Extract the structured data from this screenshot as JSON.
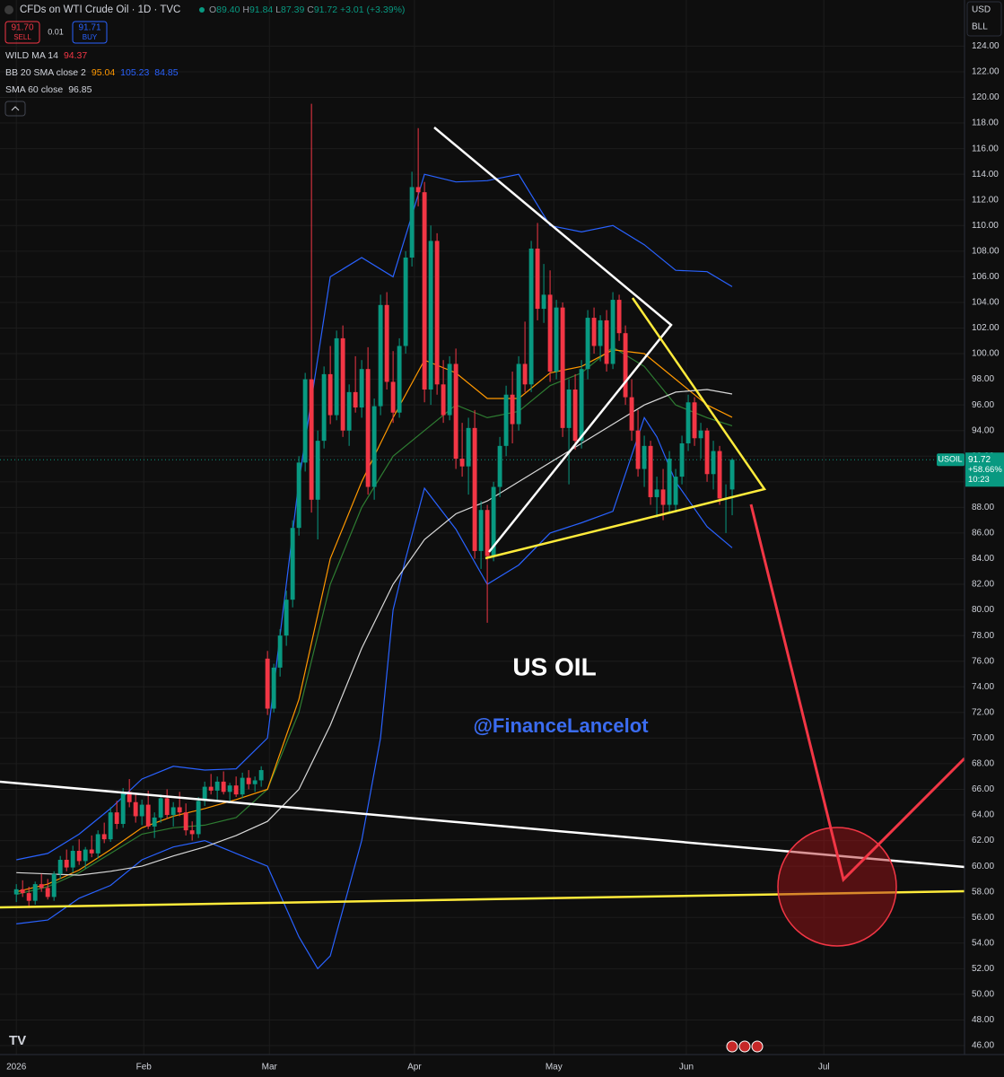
{
  "toolbar": {
    "symbol_title": "CFDs on WTI Crude Oil · 1D · TVC",
    "ohlc": [
      {
        "key": "O",
        "value": "89.40"
      },
      {
        "key": "H",
        "value": "91.84"
      },
      {
        "key": "L",
        "value": "87.39"
      },
      {
        "key": "C",
        "value": "91.72"
      }
    ],
    "change": "+3.01 (+3.39%)",
    "sell_price": "91.70",
    "sell_label": "SELL",
    "spread": "0.01",
    "buy_price": "91.71",
    "buy_label": "BUY",
    "currency": "USD",
    "unit": "BLL"
  },
  "chart_data": {
    "type": "candlestick",
    "up_color": "#089981",
    "down_color": "#f23645",
    "ylim": [
      45.3,
      127.6
    ],
    "yticks": [
      {
        "value": 46,
        "label": "46.00"
      },
      {
        "value": 48,
        "label": "48.00"
      },
      {
        "value": 50,
        "label": "50.00"
      },
      {
        "value": 52,
        "label": "52.00"
      },
      {
        "value": 54,
        "label": "54.00"
      },
      {
        "value": 56,
        "label": "56.00"
      },
      {
        "value": 58,
        "label": "58.00"
      },
      {
        "value": 60,
        "label": "60.00"
      },
      {
        "value": 62,
        "label": "62.00"
      },
      {
        "value": 64,
        "label": "64.00"
      },
      {
        "value": 66,
        "label": "66.00"
      },
      {
        "value": 68,
        "label": "68.00"
      },
      {
        "value": 70,
        "label": "70.00"
      },
      {
        "value": 72,
        "label": "72.00"
      },
      {
        "value": 74,
        "label": "74.00"
      },
      {
        "value": 76,
        "label": "76.00"
      },
      {
        "value": 78,
        "label": "78.00"
      },
      {
        "value": 80,
        "label": "80.00"
      },
      {
        "value": 82,
        "label": "82.00"
      },
      {
        "value": 84,
        "label": "84.00"
      },
      {
        "value": 86,
        "label": "86.00"
      },
      {
        "value": 88,
        "label": "88.00"
      },
      {
        "value": 90,
        "label": "90.00"
      },
      {
        "value": 92,
        "label": "92.00"
      },
      {
        "value": 94,
        "label": "94.00"
      },
      {
        "value": 96,
        "label": "96.00"
      },
      {
        "value": 98,
        "label": "98.00"
      },
      {
        "value": 100,
        "label": "100.00"
      },
      {
        "value": 102,
        "label": "102.00"
      },
      {
        "value": 104,
        "label": "104.00"
      },
      {
        "value": 106,
        "label": "106.00"
      },
      {
        "value": 108,
        "label": "108.00"
      },
      {
        "value": 110,
        "label": "110.00"
      },
      {
        "value": 112,
        "label": "112.00"
      },
      {
        "value": 114,
        "label": "114.00"
      },
      {
        "value": 116,
        "label": "116.00"
      },
      {
        "value": 118,
        "label": "118.00"
      },
      {
        "value": 120,
        "label": "120.00"
      },
      {
        "value": 122,
        "label": "122.00"
      },
      {
        "value": 124,
        "label": "124.00"
      }
    ],
    "xlim": [
      -2.6,
      151
    ],
    "xticks": [
      {
        "value": 0,
        "label": "2026"
      },
      {
        "value": 20.3,
        "label": "Feb"
      },
      {
        "value": 40.3,
        "label": "Mar"
      },
      {
        "value": 63.4,
        "label": "Apr"
      },
      {
        "value": 85.6,
        "label": "May"
      },
      {
        "value": 106.7,
        "label": "Jun"
      },
      {
        "value": 128.6,
        "label": "Jul"
      }
    ],
    "grid": true,
    "ohlc": [
      [
        57.8,
        58.6,
        57.2,
        58.2
      ],
      [
        58.2,
        58.9,
        57.6,
        57.9
      ],
      [
        57.9,
        58.4,
        56.9,
        57.3
      ],
      [
        57.3,
        58.8,
        57.0,
        58.6
      ],
      [
        58.6,
        59.4,
        58.0,
        58.3
      ],
      [
        58.3,
        59.0,
        57.4,
        57.6
      ],
      [
        57.6,
        59.6,
        57.3,
        59.4
      ],
      [
        59.4,
        60.8,
        59.0,
        60.5
      ],
      [
        60.5,
        61.3,
        59.6,
        59.9
      ],
      [
        59.9,
        61.6,
        59.5,
        61.2
      ],
      [
        61.2,
        62.1,
        60.1,
        60.4
      ],
      [
        60.4,
        61.5,
        59.8,
        61.3
      ],
      [
        61.3,
        62.4,
        60.7,
        61.0
      ],
      [
        61.0,
        62.8,
        60.6,
        62.5
      ],
      [
        62.5,
        63.4,
        61.8,
        62.1
      ],
      [
        62.1,
        64.6,
        61.9,
        64.2
      ],
      [
        64.2,
        65.1,
        62.9,
        63.3
      ],
      [
        63.3,
        66.1,
        63.0,
        65.8
      ],
      [
        65.8,
        66.8,
        64.6,
        65.0
      ],
      [
        65.0,
        65.6,
        63.4,
        63.9
      ],
      [
        63.9,
        65.2,
        63.2,
        64.8
      ],
      [
        64.8,
        65.9,
        62.9,
        63.1
      ],
      [
        63.1,
        64.2,
        62.2,
        63.8
      ],
      [
        63.8,
        65.6,
        63.4,
        65.3
      ],
      [
        65.3,
        66.0,
        63.7,
        64.0
      ],
      [
        64.0,
        65.0,
        63.1,
        64.6
      ],
      [
        64.6,
        65.8,
        63.9,
        64.2
      ],
      [
        64.2,
        64.9,
        62.4,
        62.8
      ],
      [
        62.8,
        63.5,
        62.0,
        62.5
      ],
      [
        62.5,
        65.4,
        62.2,
        65.1
      ],
      [
        65.1,
        66.6,
        64.7,
        66.2
      ],
      [
        66.2,
        67.2,
        65.6,
        65.9
      ],
      [
        65.9,
        67.0,
        65.2,
        66.6
      ],
      [
        66.6,
        67.4,
        65.6,
        65.8
      ],
      [
        65.8,
        66.5,
        65.0,
        66.3
      ],
      [
        66.3,
        67.0,
        65.4,
        65.6
      ],
      [
        65.6,
        67.3,
        65.3,
        66.9
      ],
      [
        66.9,
        67.5,
        66.0,
        66.4
      ],
      [
        66.4,
        67.0,
        65.8,
        66.7
      ],
      [
        66.7,
        67.8,
        66.2,
        67.5
      ],
      [
        76.2,
        76.8,
        71.8,
        72.3
      ],
      [
        72.3,
        75.8,
        72.0,
        75.5
      ],
      [
        75.5,
        78.5,
        74.8,
        78.0
      ],
      [
        78.0,
        81.5,
        77.2,
        80.8
      ],
      [
        80.8,
        87.0,
        80.2,
        86.4
      ],
      [
        86.4,
        92.0,
        85.8,
        91.5
      ],
      [
        91.5,
        98.5,
        90.8,
        98.0
      ],
      [
        98.0,
        119.5,
        87.6,
        88.6
      ],
      [
        88.6,
        94.0,
        85.5,
        93.2
      ],
      [
        93.2,
        99.0,
        92.6,
        98.4
      ],
      [
        98.4,
        100.6,
        94.5,
        95.2
      ],
      [
        95.2,
        101.8,
        94.8,
        101.2
      ],
      [
        101.2,
        102.2,
        93.5,
        94.0
      ],
      [
        94.0,
        97.6,
        92.8,
        97.0
      ],
      [
        97.0,
        99.8,
        95.4,
        95.8
      ],
      [
        95.8,
        99.5,
        95.0,
        98.8
      ],
      [
        98.8,
        100.5,
        89.0,
        89.6
      ],
      [
        89.6,
        96.5,
        88.6,
        95.9
      ],
      [
        95.9,
        104.6,
        95.2,
        103.8
      ],
      [
        103.8,
        104.8,
        97.2,
        97.8
      ],
      [
        97.8,
        100.2,
        94.6,
        95.4
      ],
      [
        95.4,
        101.2,
        95.0,
        100.6
      ],
      [
        100.6,
        108.0,
        100.0,
        107.5
      ],
      [
        107.5,
        114.2,
        106.8,
        113.0
      ],
      [
        113.0,
        117.6,
        111.5,
        112.6
      ],
      [
        112.6,
        113.4,
        96.2,
        97.2
      ],
      [
        97.2,
        110.0,
        96.0,
        108.8
      ],
      [
        108.8,
        109.4,
        96.8,
        97.6
      ],
      [
        97.6,
        99.5,
        94.6,
        95.2
      ],
      [
        95.2,
        99.8,
        94.8,
        99.2
      ],
      [
        99.2,
        100.4,
        91.0,
        91.8
      ],
      [
        91.8,
        94.6,
        90.4,
        91.2
      ],
      [
        91.2,
        95.0,
        89.0,
        94.2
      ],
      [
        94.2,
        95.6,
        84.0,
        84.6
      ],
      [
        84.6,
        88.5,
        83.2,
        87.8
      ],
      [
        87.8,
        88.2,
        79.0,
        84.2
      ],
      [
        84.2,
        90.0,
        83.8,
        89.6
      ],
      [
        89.6,
        93.5,
        88.8,
        92.8
      ],
      [
        92.8,
        97.5,
        92.0,
        96.8
      ],
      [
        96.8,
        98.6,
        93.0,
        94.5
      ],
      [
        94.5,
        99.8,
        94.0,
        99.2
      ],
      [
        99.2,
        102.5,
        97.0,
        97.6
      ],
      [
        97.6,
        108.8,
        97.0,
        108.2
      ],
      [
        108.2,
        110.2,
        102.6,
        103.5
      ],
      [
        103.5,
        107.0,
        102.4,
        104.6
      ],
      [
        104.6,
        106.5,
        97.8,
        98.6
      ],
      [
        98.6,
        104.2,
        98.0,
        103.6
      ],
      [
        103.6,
        104.0,
        93.5,
        94.2
      ],
      [
        94.2,
        98.0,
        89.8,
        97.2
      ],
      [
        97.2,
        98.4,
        92.5,
        93.2
      ],
      [
        93.2,
        99.5,
        92.6,
        98.8
      ],
      [
        98.8,
        103.4,
        98.0,
        102.8
      ],
      [
        102.8,
        103.6,
        100.0,
        100.6
      ],
      [
        100.6,
        103.0,
        99.4,
        102.6
      ],
      [
        102.6,
        103.4,
        98.6,
        99.2
      ],
      [
        99.2,
        104.8,
        98.8,
        104.2
      ],
      [
        104.2,
        104.6,
        101.0,
        101.6
      ],
      [
        101.6,
        102.2,
        96.0,
        96.6
      ],
      [
        96.6,
        98.0,
        93.2,
        94.0
      ],
      [
        94.0,
        95.6,
        90.4,
        91.0
      ],
      [
        91.0,
        93.6,
        89.6,
        92.8
      ],
      [
        92.8,
        93.2,
        88.2,
        88.8
      ],
      [
        88.8,
        90.4,
        87.2,
        89.4
      ],
      [
        89.4,
        91.0,
        87.0,
        88.2
      ],
      [
        88.2,
        92.4,
        87.6,
        91.8
      ],
      [
        88.2,
        91.0,
        87.6,
        90.4
      ],
      [
        90.4,
        93.6,
        89.8,
        93.0
      ],
      [
        93.0,
        96.8,
        92.4,
        96.2
      ],
      [
        96.2,
        96.6,
        92.8,
        93.4
      ],
      [
        93.4,
        94.6,
        91.8,
        94.0
      ],
      [
        94.0,
        94.2,
        90.0,
        90.6
      ],
      [
        90.6,
        93.2,
        89.4,
        92.4
      ],
      [
        92.4,
        92.8,
        88.2,
        88.7
      ],
      [
        88.7,
        89.8,
        86.0,
        88.71
      ],
      [
        89.4,
        91.84,
        87.39,
        91.72
      ]
    ],
    "indicators": [
      {
        "name": "WILD MA 14",
        "readout": [
          {
            "value": 94.37,
            "color": "#f23645"
          }
        ],
        "lines": [
          {
            "color": "#2e7d32",
            "x": [
              0,
              5,
              10,
              15,
              20,
              25,
              30,
              35,
              40,
              45,
              50,
              55,
              60,
              65,
              70,
              75,
              80,
              85,
              90,
              95,
              100,
              105,
              110,
              114
            ],
            "values": [
              57.8,
              58.4,
              59.5,
              61.0,
              62.5,
              63.0,
              63.2,
              63.8,
              66.0,
              72.0,
              82.0,
              88.0,
              92.0,
              94.0,
              96.0,
              95.0,
              95.5,
              97.5,
              98.5,
              100.5,
              99.0,
              96.0,
              95.0,
              94.37
            ]
          }
        ]
      },
      {
        "name": "BB 20 SMA close 2",
        "readout": [
          {
            "value": 95.04,
            "color": "#ff9800"
          },
          {
            "value": 105.23,
            "color": "#2962ff"
          },
          {
            "value": 84.85,
            "color": "#2962ff"
          }
        ],
        "lines": [
          {
            "color": "#ff9800",
            "x": [
              0,
              5,
              10,
              15,
              20,
              25,
              30,
              35,
              40,
              45,
              50,
              55,
              60,
              65,
              70,
              75,
              80,
              85,
              90,
              95,
              100,
              105,
              110,
              114
            ],
            "values": [
              58.0,
              58.6,
              59.7,
              61.3,
              63.0,
              63.9,
              64.5,
              65.2,
              66.0,
              73.0,
              84.0,
              90.0,
              95.0,
              99.5,
              98.5,
              96.5,
              96.5,
              98.5,
              99.0,
              100.3,
              100.0,
              98.0,
              96.0,
              95.04
            ]
          },
          {
            "color": "#2962ff",
            "x": [
              0,
              5,
              10,
              15,
              20,
              25,
              30,
              35,
              40,
              45,
              50,
              55,
              60,
              65,
              70,
              75,
              80,
              85,
              90,
              95,
              100,
              105,
              110,
              114
            ],
            "values": [
              60.5,
              61.0,
              62.5,
              64.5,
              66.8,
              67.8,
              67.5,
              67.6,
              70.0,
              90.0,
              106.0,
              107.5,
              106.0,
              114.0,
              113.4,
              113.5,
              114.0,
              110.0,
              109.5,
              110.0,
              108.5,
              106.5,
              106.4,
              105.23
            ]
          },
          {
            "color": "#2962ff",
            "x": [
              0,
              5,
              10,
              15,
              20,
              25,
              30,
              35,
              40,
              45,
              48,
              50,
              55,
              58,
              60,
              62,
              65,
              70,
              75,
              80,
              85,
              90,
              95,
              100,
              102,
              105,
              110,
              114
            ],
            "values": [
              55.5,
              55.8,
              57.5,
              58.5,
              60.5,
              61.5,
              62.0,
              61.0,
              60.0,
              54.5,
              52.0,
              53.0,
              62.0,
              70.0,
              80.0,
              84.0,
              89.5,
              86.3,
              82.0,
              83.5,
              86.0,
              86.8,
              87.7,
              95.0,
              93.5,
              90.0,
              86.5,
              84.85
            ]
          }
        ]
      },
      {
        "name": "SMA 60 close",
        "readout": [
          {
            "value": 96.85,
            "color": "#d1d4dc"
          }
        ],
        "lines": [
          {
            "color": "#d9d9d9",
            "x": [
              0,
              5,
              10,
              15,
              20,
              25,
              30,
              35,
              40,
              45,
              50,
              55,
              60,
              65,
              70,
              75,
              80,
              85,
              90,
              95,
              100,
              105,
              110,
              114
            ],
            "values": [
              59.5,
              59.4,
              59.3,
              59.6,
              60.0,
              60.8,
              61.5,
              62.4,
              63.5,
              66.0,
              71.0,
              77.0,
              82.0,
              85.5,
              87.5,
              88.5,
              90.0,
              91.5,
              93.0,
              94.5,
              96.0,
              97.0,
              97.2,
              96.85
            ]
          }
        ]
      }
    ],
    "price_tag": {
      "symbol": "USOIL",
      "price": 91.72,
      "change": "+58.66%",
      "countdown": "10:23"
    },
    "annotations": [
      "US OIL",
      "@FinanceLancelot"
    ]
  }
}
